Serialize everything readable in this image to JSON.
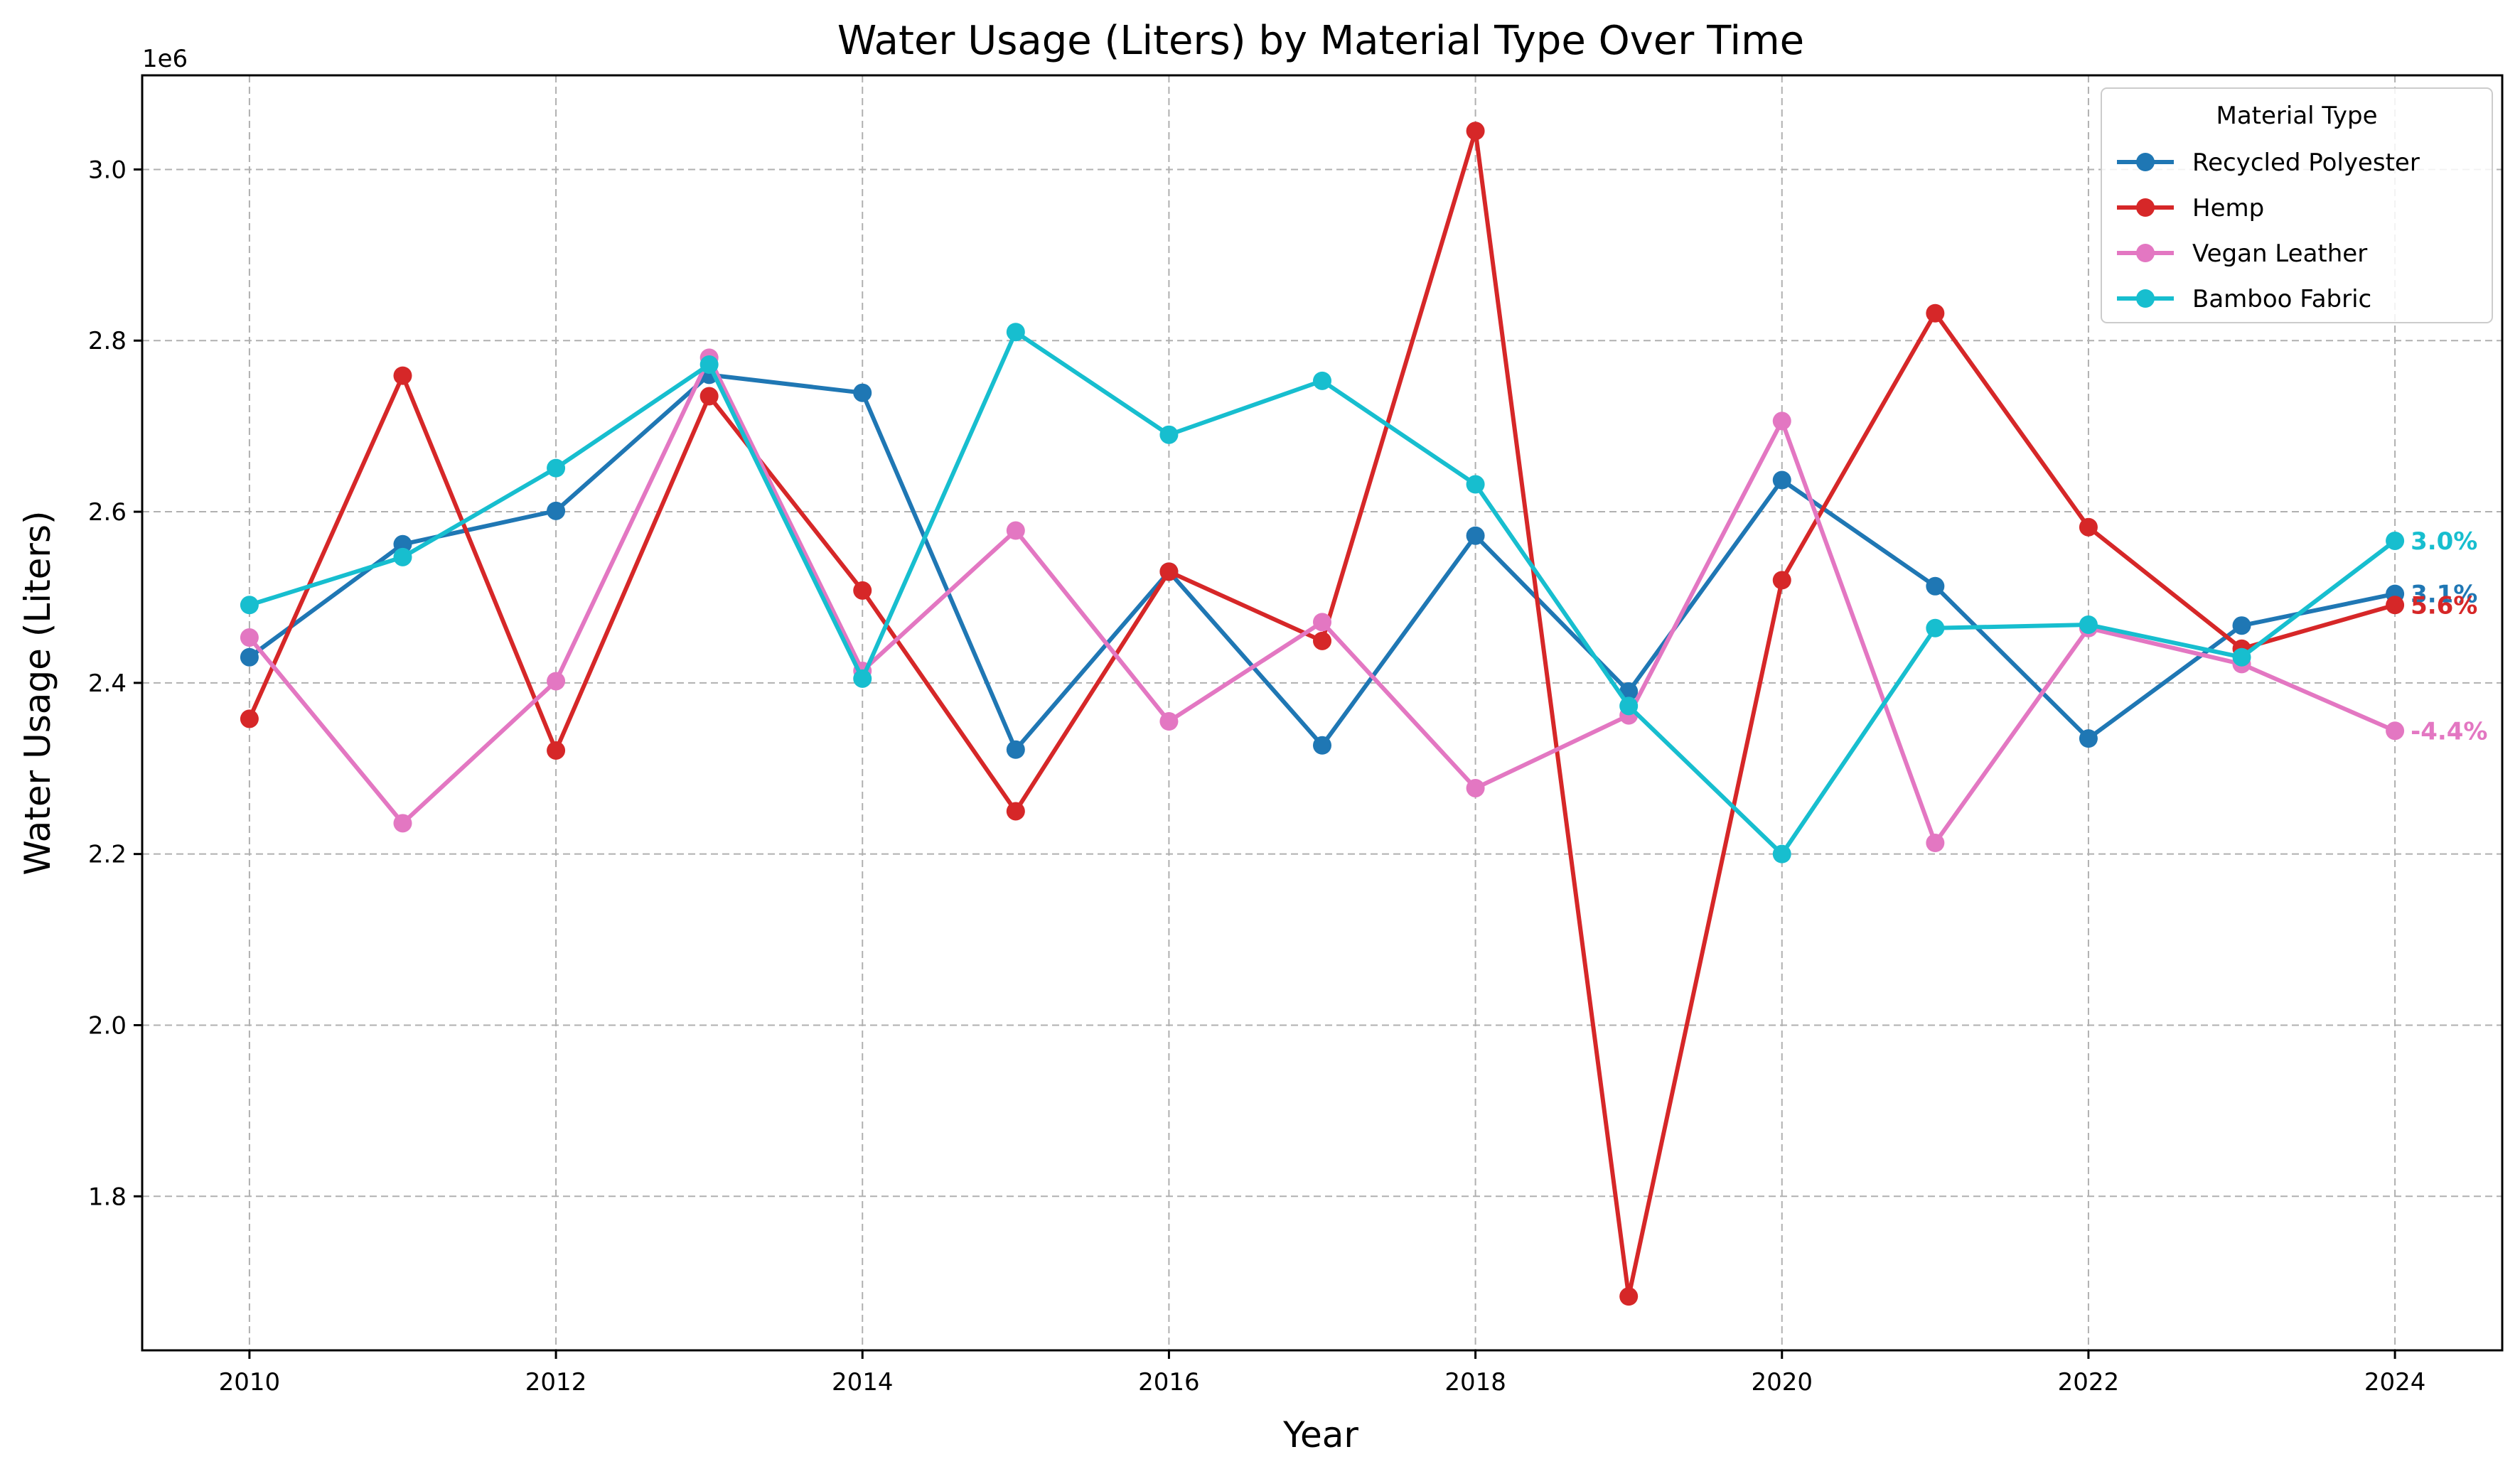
{
  "chart_data": {
    "type": "line",
    "title": "Water Usage (Liters) by Material Type Over Time",
    "xlabel": "Year",
    "ylabel": "Water Usage (Liters)",
    "y_offset_label": "1e6",
    "x": [
      2010,
      2011,
      2012,
      2013,
      2014,
      2015,
      2016,
      2017,
      2018,
      2019,
      2020,
      2021,
      2022,
      2023,
      2024
    ],
    "xlim": [
      2009.3,
      2024.7
    ],
    "ylim": [
      1.62,
      3.11
    ],
    "x_ticks": [
      2010,
      2012,
      2014,
      2016,
      2018,
      2020,
      2022,
      2024
    ],
    "y_ticks": [
      1.8,
      2.0,
      2.2,
      2.4,
      2.6,
      2.8,
      3.0
    ],
    "y_tick_labels": [
      "1.8",
      "2.0",
      "2.2",
      "2.4",
      "2.6",
      "2.8",
      "3.0"
    ],
    "grid": true,
    "legend": {
      "title": "Material Type",
      "placement": "top-right"
    },
    "series": [
      {
        "name": "Recycled Polyester",
        "color": "#1f77b4",
        "values": [
          2.43,
          2.562,
          2.601,
          2.76,
          2.739,
          2.322,
          2.53,
          2.327,
          2.572,
          2.39,
          2.637,
          2.513,
          2.335,
          2.467,
          2.504
        ],
        "end_label": "3.1%"
      },
      {
        "name": "Hemp",
        "color": "#d62728",
        "values": [
          2.358,
          2.759,
          2.321,
          2.735,
          2.508,
          2.25,
          2.53,
          2.449,
          3.045,
          1.683,
          2.52,
          2.832,
          2.582,
          2.44,
          2.491
        ],
        "end_label": "5.6%"
      },
      {
        "name": "Vegan Leather",
        "color": "#e377c2",
        "values": [
          2.453,
          2.236,
          2.402,
          2.78,
          2.414,
          2.578,
          2.355,
          2.471,
          2.277,
          2.362,
          2.706,
          2.213,
          2.464,
          2.422,
          2.344
        ],
        "end_label": "-4.4%"
      },
      {
        "name": "Bamboo Fabric",
        "color": "#17becf",
        "values": [
          2.491,
          2.547,
          2.651,
          2.772,
          2.405,
          2.81,
          2.69,
          2.753,
          2.632,
          2.373,
          2.2,
          2.464,
          2.468,
          2.43,
          2.566
        ],
        "end_label": "3.0%"
      }
    ]
  }
}
